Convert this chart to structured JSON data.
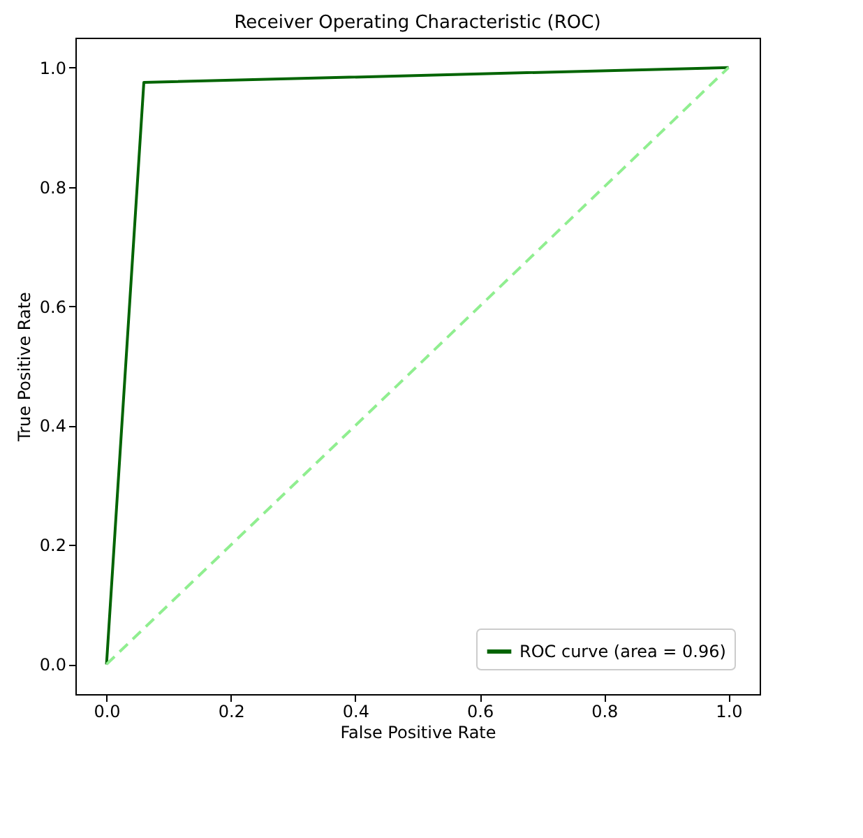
{
  "chart_data": {
    "type": "line",
    "title": "Receiver Operating Characteristic (ROC)",
    "xlabel": "False Positive Rate",
    "ylabel": "True Positive Rate",
    "xlim": [
      -0.05,
      1.05
    ],
    "ylim": [
      -0.05,
      1.05
    ],
    "xticks": [
      {
        "value": 0,
        "label": "0.0"
      },
      0.2,
      0.4,
      0.6,
      0.8,
      {
        "value": 1,
        "label": "1.0"
      }
    ],
    "yticks": [
      {
        "value": 0,
        "label": "0.0"
      },
      0.2,
      0.4,
      0.6,
      0.8,
      {
        "value": 1,
        "label": "1.0"
      }
    ],
    "grid": false,
    "legend": "bottom right",
    "marker": "none",
    "series": [
      {
        "name": "ROC curve (area = 0.96)",
        "color": "#006400",
        "line_style": "solid",
        "x": [
          0,
          0.06,
          1
        ],
        "values": [
          0,
          0.975,
          1
        ]
      },
      {
        "color": "#90ee90",
        "line_style": "dashed",
        "x": [
          0,
          1
        ],
        "values": [
          0,
          1
        ]
      }
    ]
  }
}
